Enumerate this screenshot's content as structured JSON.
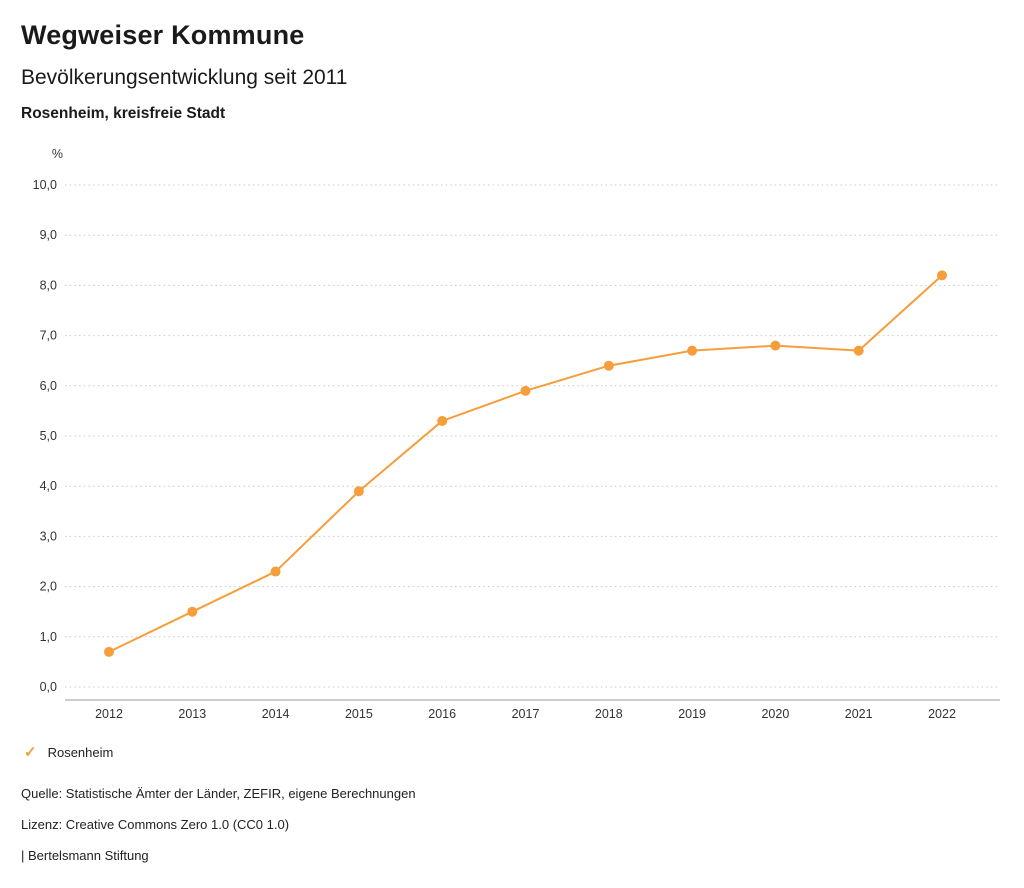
{
  "header": {
    "title": "Wegweiser Kommune",
    "subtitle": "Bevölkerungsentwicklung seit 2011",
    "region": "Rosenheim, kreisfreie Stadt"
  },
  "chart_data": {
    "type": "line",
    "title": "Bevölkerungsentwicklung seit 2011",
    "xlabel": "",
    "ylabel": "%",
    "x": [
      "2012",
      "2013",
      "2014",
      "2015",
      "2016",
      "2017",
      "2018",
      "2019",
      "2020",
      "2021",
      "2022"
    ],
    "series": [
      {
        "name": "Rosenheim",
        "values": [
          0.7,
          1.5,
          2.3,
          3.9,
          5.3,
          5.9,
          6.4,
          6.7,
          6.8,
          6.7,
          8.2
        ],
        "color": "#F59E3B"
      }
    ],
    "ylim": [
      0,
      10
    ],
    "ytick_step": 1.0,
    "grid": "horizontal-dotted",
    "legend_position": "bottom-left",
    "colors": {
      "line": "#F59E3B",
      "marker": "#F59E3B",
      "gridline": "#c9c9c9",
      "axis": "#9a9a9a",
      "tick_text": "#333333"
    }
  },
  "legend": {
    "items": [
      {
        "label": "Rosenheim",
        "color": "#F59E3B",
        "marker": "check"
      }
    ]
  },
  "footer": {
    "source": "Quelle: Statistische Ämter der Länder, ZEFIR, eigene Berechnungen",
    "license": "Lizenz: Creative Commons Zero 1.0 (CC0 1.0)",
    "brand": "| Bertelsmann Stiftung"
  }
}
